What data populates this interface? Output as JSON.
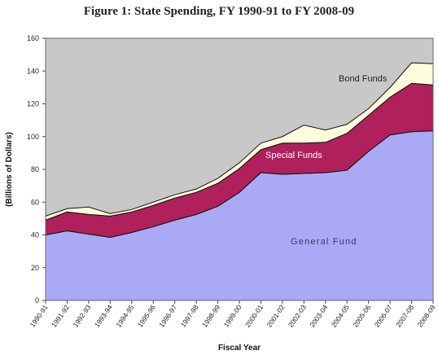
{
  "chart_data": {
    "type": "area",
    "title": "Figure 1: State Spending, FY 1990-91 to FY 2008-09",
    "xlabel": "Fiscal Year",
    "ylabel": "(Billions of Dollars)",
    "ylim": [
      0,
      160
    ],
    "yticks": [
      0,
      20,
      40,
      60,
      80,
      100,
      120,
      140,
      160
    ],
    "grid": false,
    "categories": [
      "1990-91",
      "1991-92",
      "1992-93",
      "1993-94",
      "1994-95",
      "1995-96",
      "1996-97",
      "1997-98",
      "1998-99",
      "1999-00",
      "2000-01",
      "2001-02",
      "2002-03",
      "2003-04",
      "2004-05",
      "2005-06",
      "2006-07",
      "2007-08",
      "2008-09"
    ],
    "series": [
      {
        "name": "General Fund",
        "values": [
          40,
          42.5,
          40.5,
          38.5,
          41.5,
          45,
          49,
          52.5,
          57.5,
          66,
          78,
          77,
          77.5,
          78,
          79.5,
          91,
          101,
          103,
          103.5
        ]
      },
      {
        "name": "Special Funds",
        "values": [
          9,
          11.5,
          12,
          13,
          12.5,
          13,
          13.5,
          13.5,
          14,
          14.5,
          14,
          19,
          18.5,
          18.5,
          22.5,
          22,
          23,
          29.5,
          28
        ]
      },
      {
        "name": "Bond Funds",
        "values": [
          2.5,
          2,
          4.5,
          1.5,
          1.5,
          2,
          2,
          2,
          3,
          3.5,
          4,
          4,
          11,
          7.5,
          5.5,
          4,
          6,
          12.5,
          13
        ]
      }
    ],
    "colors": {
      "General Fund": "#a9a9f5",
      "Special Funds": "#b0205c",
      "Bond Funds": "#fffddc",
      "plot_background": "#c8c8c8",
      "label_general": "#3a3a6a",
      "label_special": "#ffffff",
      "label_bond": "#222222"
    }
  }
}
